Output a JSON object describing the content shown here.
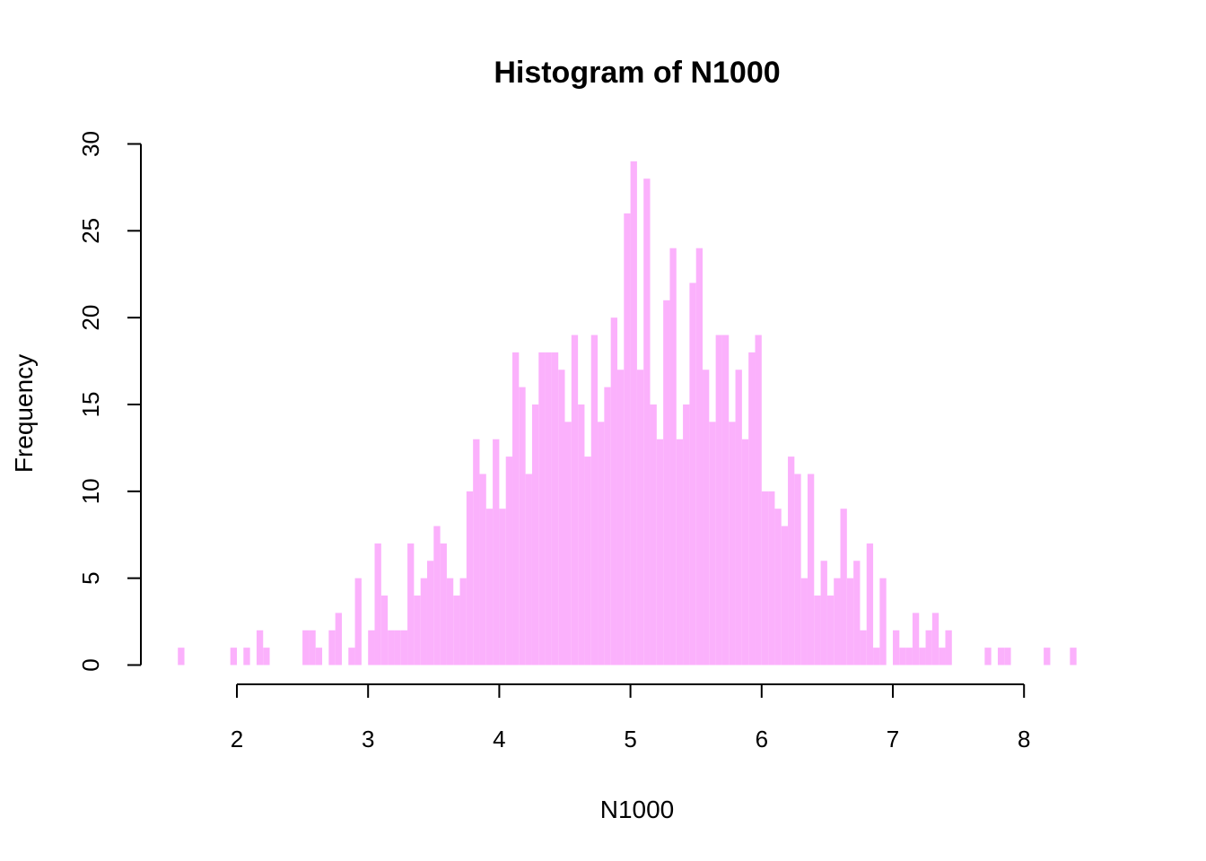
{
  "chart_data": {
    "type": "bar",
    "title": "Histogram of N1000",
    "xlabel": "N1000",
    "ylabel": "Frequency",
    "bar_color": "#FBB1FC",
    "bin_width": 0.05,
    "bin_start": 1.55,
    "xlim": [
      1.55,
      8.55
    ],
    "ylim": [
      0,
      30
    ],
    "x_ticks": [
      "2",
      "3",
      "4",
      "5",
      "6",
      "7",
      "8"
    ],
    "y_ticks": [
      "0",
      "5",
      "10",
      "15",
      "20",
      "25",
      "30"
    ],
    "counts": [
      1,
      0,
      0,
      0,
      0,
      0,
      0,
      0,
      1,
      0,
      1,
      0,
      2,
      1,
      0,
      0,
      0,
      0,
      0,
      2,
      2,
      1,
      0,
      2,
      3,
      0,
      1,
      5,
      0,
      2,
      7,
      4,
      2,
      2,
      2,
      7,
      4,
      5,
      6,
      8,
      7,
      5,
      4,
      5,
      10,
      13,
      11,
      9,
      13,
      9,
      12,
      18,
      16,
      11,
      15,
      18,
      18,
      18,
      17,
      14,
      19,
      15,
      12,
      19,
      14,
      16,
      20,
      17,
      26,
      29,
      17,
      28,
      15,
      13,
      21,
      24,
      13,
      15,
      22,
      24,
      17,
      14,
      19,
      19,
      14,
      17,
      13,
      18,
      19,
      10,
      10,
      9,
      8,
      12,
      11,
      5,
      11,
      4,
      6,
      4,
      5,
      9,
      5,
      6,
      2,
      7,
      1,
      5,
      0,
      2,
      1,
      1,
      3,
      1,
      2,
      3,
      1,
      2,
      0,
      0,
      0,
      0,
      0,
      1,
      0,
      1,
      1,
      0,
      0,
      0,
      0,
      0,
      1,
      0,
      0,
      0,
      1
    ]
  }
}
